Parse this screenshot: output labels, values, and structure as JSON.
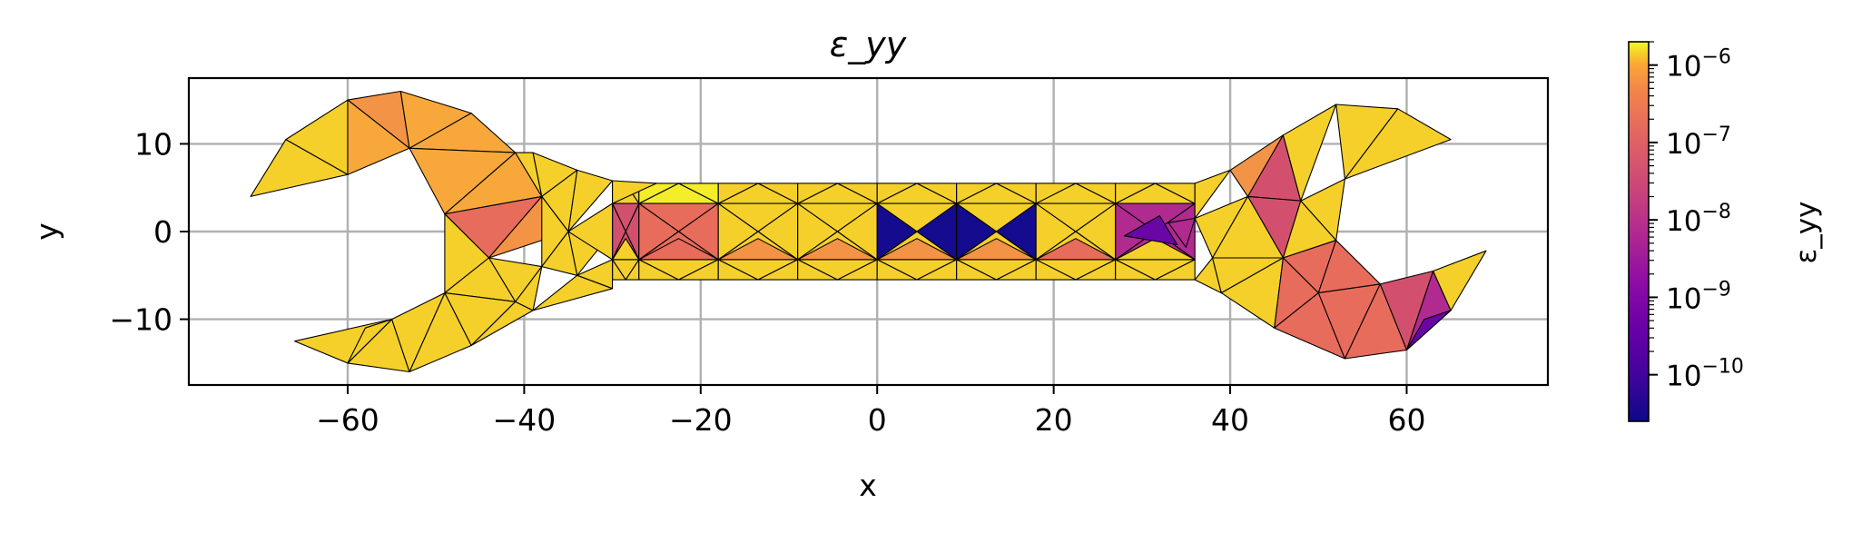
{
  "chart_data": {
    "type": "heatmap",
    "subtype": "triangular-mesh",
    "title": "ε_yy",
    "xlabel": "x",
    "ylabel": "y",
    "xlim": [
      -78,
      76
    ],
    "ylim": [
      -17.5,
      17.5
    ],
    "xticks": [
      -60,
      -40,
      -20,
      0,
      20,
      40,
      60
    ],
    "yticks": [
      -10,
      0,
      10
    ],
    "xtick_labels": [
      "−60",
      "−40",
      "−20",
      "0",
      "20",
      "40",
      "60"
    ],
    "ytick_labels": [
      "−10",
      "0",
      "10"
    ],
    "grid": true,
    "colormap": "plasma",
    "colorbar": {
      "label": "ε_yy",
      "scale": "log",
      "range": [
        2.5e-11,
        2e-06
      ],
      "tick_values": [
        1e-06,
        1e-07,
        1e-08,
        1e-09,
        1e-10
      ],
      "tick_labels": [
        "10^-6",
        "10^-7",
        "10^-8",
        "10^-9",
        "10^-10"
      ]
    },
    "mesh_colors": {
      "yellow": "#f5d02a",
      "bright_yellow": "#f3ed2a",
      "light_orange": "#f8a83a",
      "orange": "#f39346",
      "salmon": "#e86c5c",
      "pink": "#d2506e",
      "magenta": "#b02a8f",
      "violet": "#6a06a6",
      "deep_blue": "#150b8e",
      "edge": "#000000"
    }
  }
}
